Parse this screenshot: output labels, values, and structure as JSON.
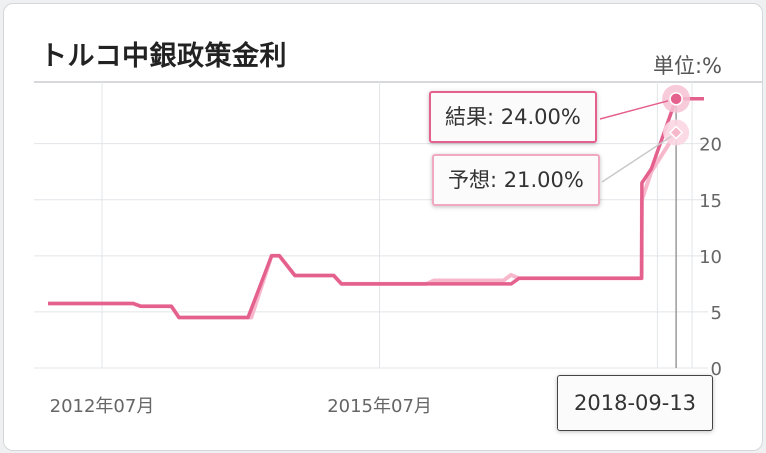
{
  "title": "トルコ中銀政策金利",
  "unit_label": "単位:%",
  "colors": {
    "actual": "#e4608d",
    "forecast": "#f7b8cc",
    "grid": "#e2e4e8"
  },
  "tooltip": {
    "actual_label": "結果: 24.00%",
    "forecast_label": "予想: 21.00%",
    "date_label": "2018-09-13"
  },
  "chart_data": {
    "type": "line",
    "title": "トルコ中銀政策金利",
    "ylabel": "単位:%",
    "y_ticks": [
      "0",
      "5",
      "10",
      "15",
      "20"
    ],
    "x_ticks": [
      "2012年07月",
      "2015年07月"
    ],
    "ylim": [
      0,
      24
    ],
    "xlim": [
      "2011-12-01",
      "2019-01-01"
    ],
    "grid": true,
    "series": [
      {
        "name": "結果",
        "x": [
          "2011-12-01",
          "2012-11-01",
          "2012-12-01",
          "2013-04-01",
          "2013-05-01",
          "2014-01-28",
          "2014-05-01",
          "2014-06-01",
          "2014-08-01",
          "2015-01-01",
          "2015-02-01",
          "2016-12-01",
          "2017-01-01",
          "2018-04-30",
          "2018-05-01",
          "2018-06-07",
          "2018-09-13",
          "2019-01-01"
        ],
        "y": [
          5.75,
          5.75,
          5.5,
          5.5,
          4.5,
          4.5,
          10,
          10,
          8.25,
          8.25,
          7.5,
          7.5,
          8,
          8,
          16.5,
          17.75,
          24,
          24
        ]
      },
      {
        "name": "予想",
        "x": [
          "2011-12-01",
          "2012-11-01",
          "2012-12-01",
          "2013-04-01",
          "2013-05-01",
          "2014-02-10",
          "2014-05-01",
          "2014-06-01",
          "2014-08-01",
          "2015-01-01",
          "2015-02-01",
          "2016-01-01",
          "2016-02-01",
          "2016-11-01",
          "2016-12-01",
          "2017-01-01",
          "2018-04-30",
          "2018-05-01",
          "2018-06-07",
          "2018-09-13"
        ],
        "y": [
          5.75,
          5.75,
          5.5,
          5.5,
          4.5,
          4.5,
          10,
          10,
          8.25,
          8.25,
          7.5,
          7.5,
          7.8,
          7.8,
          8.3,
          8,
          8,
          15,
          17.5,
          21
        ]
      }
    ],
    "highlight": {
      "x": "2018-09-13",
      "actual": 24.0,
      "forecast": 21.0
    }
  }
}
